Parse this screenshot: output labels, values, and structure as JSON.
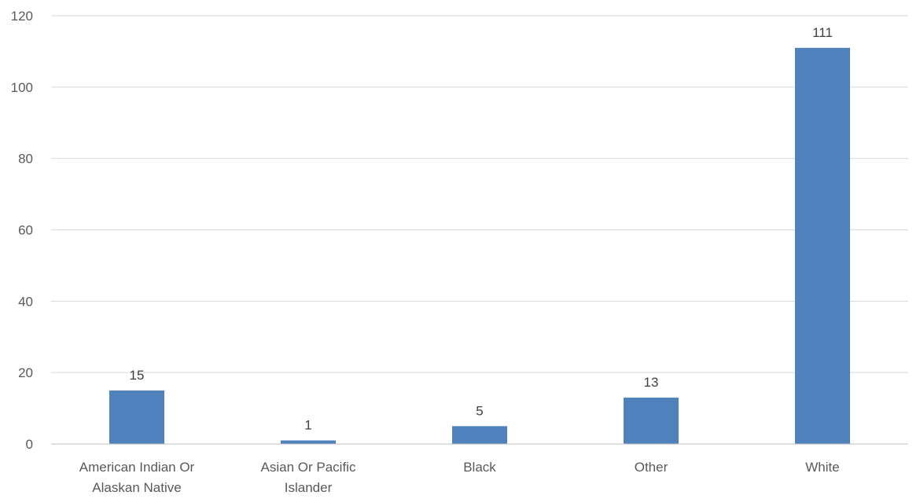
{
  "chart_data": {
    "type": "bar",
    "categories": [
      [
        "American Indian Or",
        "Alaskan Native"
      ],
      [
        "Asian Or Pacific",
        "Islander"
      ],
      [
        "Black"
      ],
      [
        "Other"
      ],
      [
        "White"
      ]
    ],
    "values": [
      15,
      1,
      5,
      13,
      111
    ],
    "data_labels": [
      "15",
      "1",
      "5",
      "13",
      "111"
    ],
    "ylim": [
      0,
      120
    ],
    "yticks": [
      0,
      20,
      40,
      60,
      80,
      100,
      120
    ],
    "grid": true,
    "bar_color": "#4f81bd"
  }
}
